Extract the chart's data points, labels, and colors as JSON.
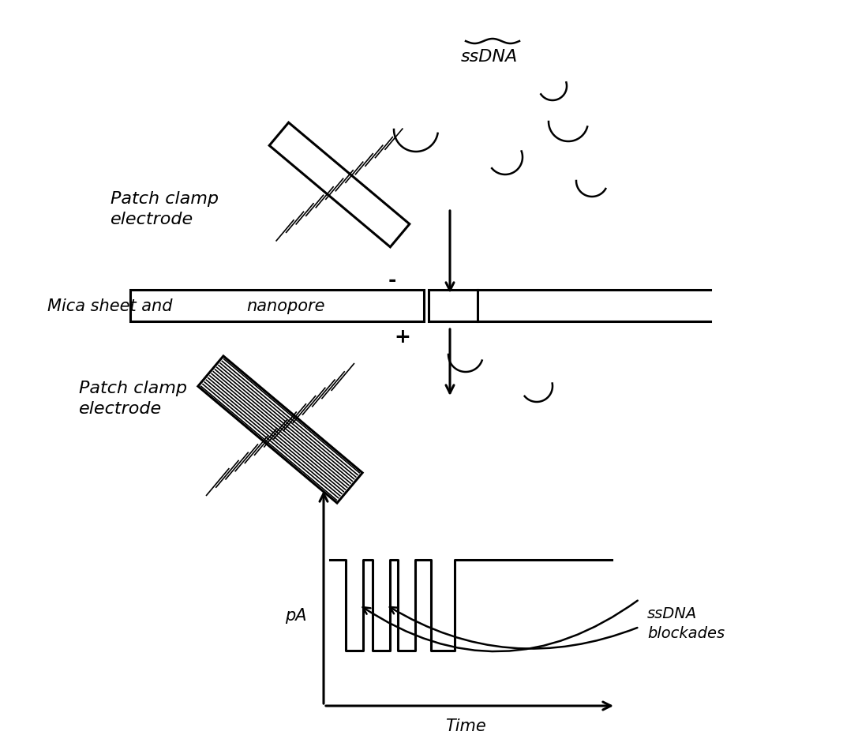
{
  "bg_color": "#ffffff",
  "line_color": "#000000",
  "patch_clamp_top_label": "Patch clamp\nelectrode",
  "patch_clamp_bottom_label": "Patch clamp\nelectrode",
  "mica_label": "Mica sheet and ",
  "nanopore_label": "nanopore",
  "ssdna_label": "ssDNA",
  "ssdna_blockades_label": "ssDNA\nblockades",
  "pa_label": "pA",
  "time_label": "Time",
  "minus_sign": "-",
  "plus_sign": "+"
}
